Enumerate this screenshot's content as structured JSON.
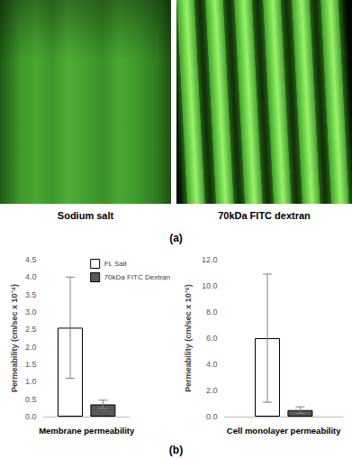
{
  "panel_a": {
    "images": [
      "Sodium salt",
      "70kDa FITC dextran"
    ],
    "label": "(a)"
  },
  "panel_b": {
    "label": "(b)"
  },
  "chart_data": [
    {
      "type": "bar",
      "x_label": "Membrane permeability",
      "y_label": "Permeability (cm/sec x 10⁻⁴)",
      "categories": [
        null
      ],
      "series": [
        {
          "name": "FL Salt",
          "color": "#ffffff",
          "values": [
            2.55
          ],
          "errors": [
            1.45
          ]
        },
        {
          "name": "70kDa FITC Dextran",
          "color": "#595959",
          "values": [
            0.35
          ],
          "errors": [
            0.12
          ]
        }
      ],
      "ylim": [
        0,
        4.5
      ],
      "yticks": [
        {
          "value": 0,
          "label": "0.0"
        },
        {
          "value": 0.5,
          "label": "0.5"
        },
        {
          "value": 1,
          "label": "1.0"
        },
        {
          "value": 1.5,
          "label": "1.5"
        },
        {
          "value": 2,
          "label": "2.0"
        },
        {
          "value": 2.5,
          "label": "2.5"
        },
        {
          "value": 3,
          "label": "3.0"
        },
        {
          "value": 3.5,
          "label": "3.5"
        },
        {
          "value": 4,
          "label": "4.0"
        },
        {
          "value": 4.5,
          "label": "4.5"
        }
      ],
      "grid": false,
      "legend": "top-right"
    },
    {
      "type": "bar",
      "x_label": "Cell monolayer permeability",
      "y_label": "Permeability (cm/sec x 10⁻⁶)",
      "categories": [
        null
      ],
      "series": [
        {
          "color": "#ffffff",
          "values": [
            6.0
          ],
          "errors": [
            4.9
          ]
        },
        {
          "color": "#595959",
          "values": [
            0.5
          ],
          "errors": [
            0.25
          ]
        }
      ],
      "ylim": [
        0,
        12
      ],
      "yticks": [
        {
          "value": 0,
          "label": "0.0"
        },
        {
          "value": 2,
          "label": "2.0"
        },
        {
          "value": 4,
          "label": "4.0"
        },
        {
          "value": 6,
          "label": "6.0"
        },
        {
          "value": 8,
          "label": "8.0"
        },
        {
          "value": 10,
          "label": "10.0"
        },
        {
          "value": 12,
          "label": "12.0"
        }
      ],
      "grid": false
    }
  ]
}
